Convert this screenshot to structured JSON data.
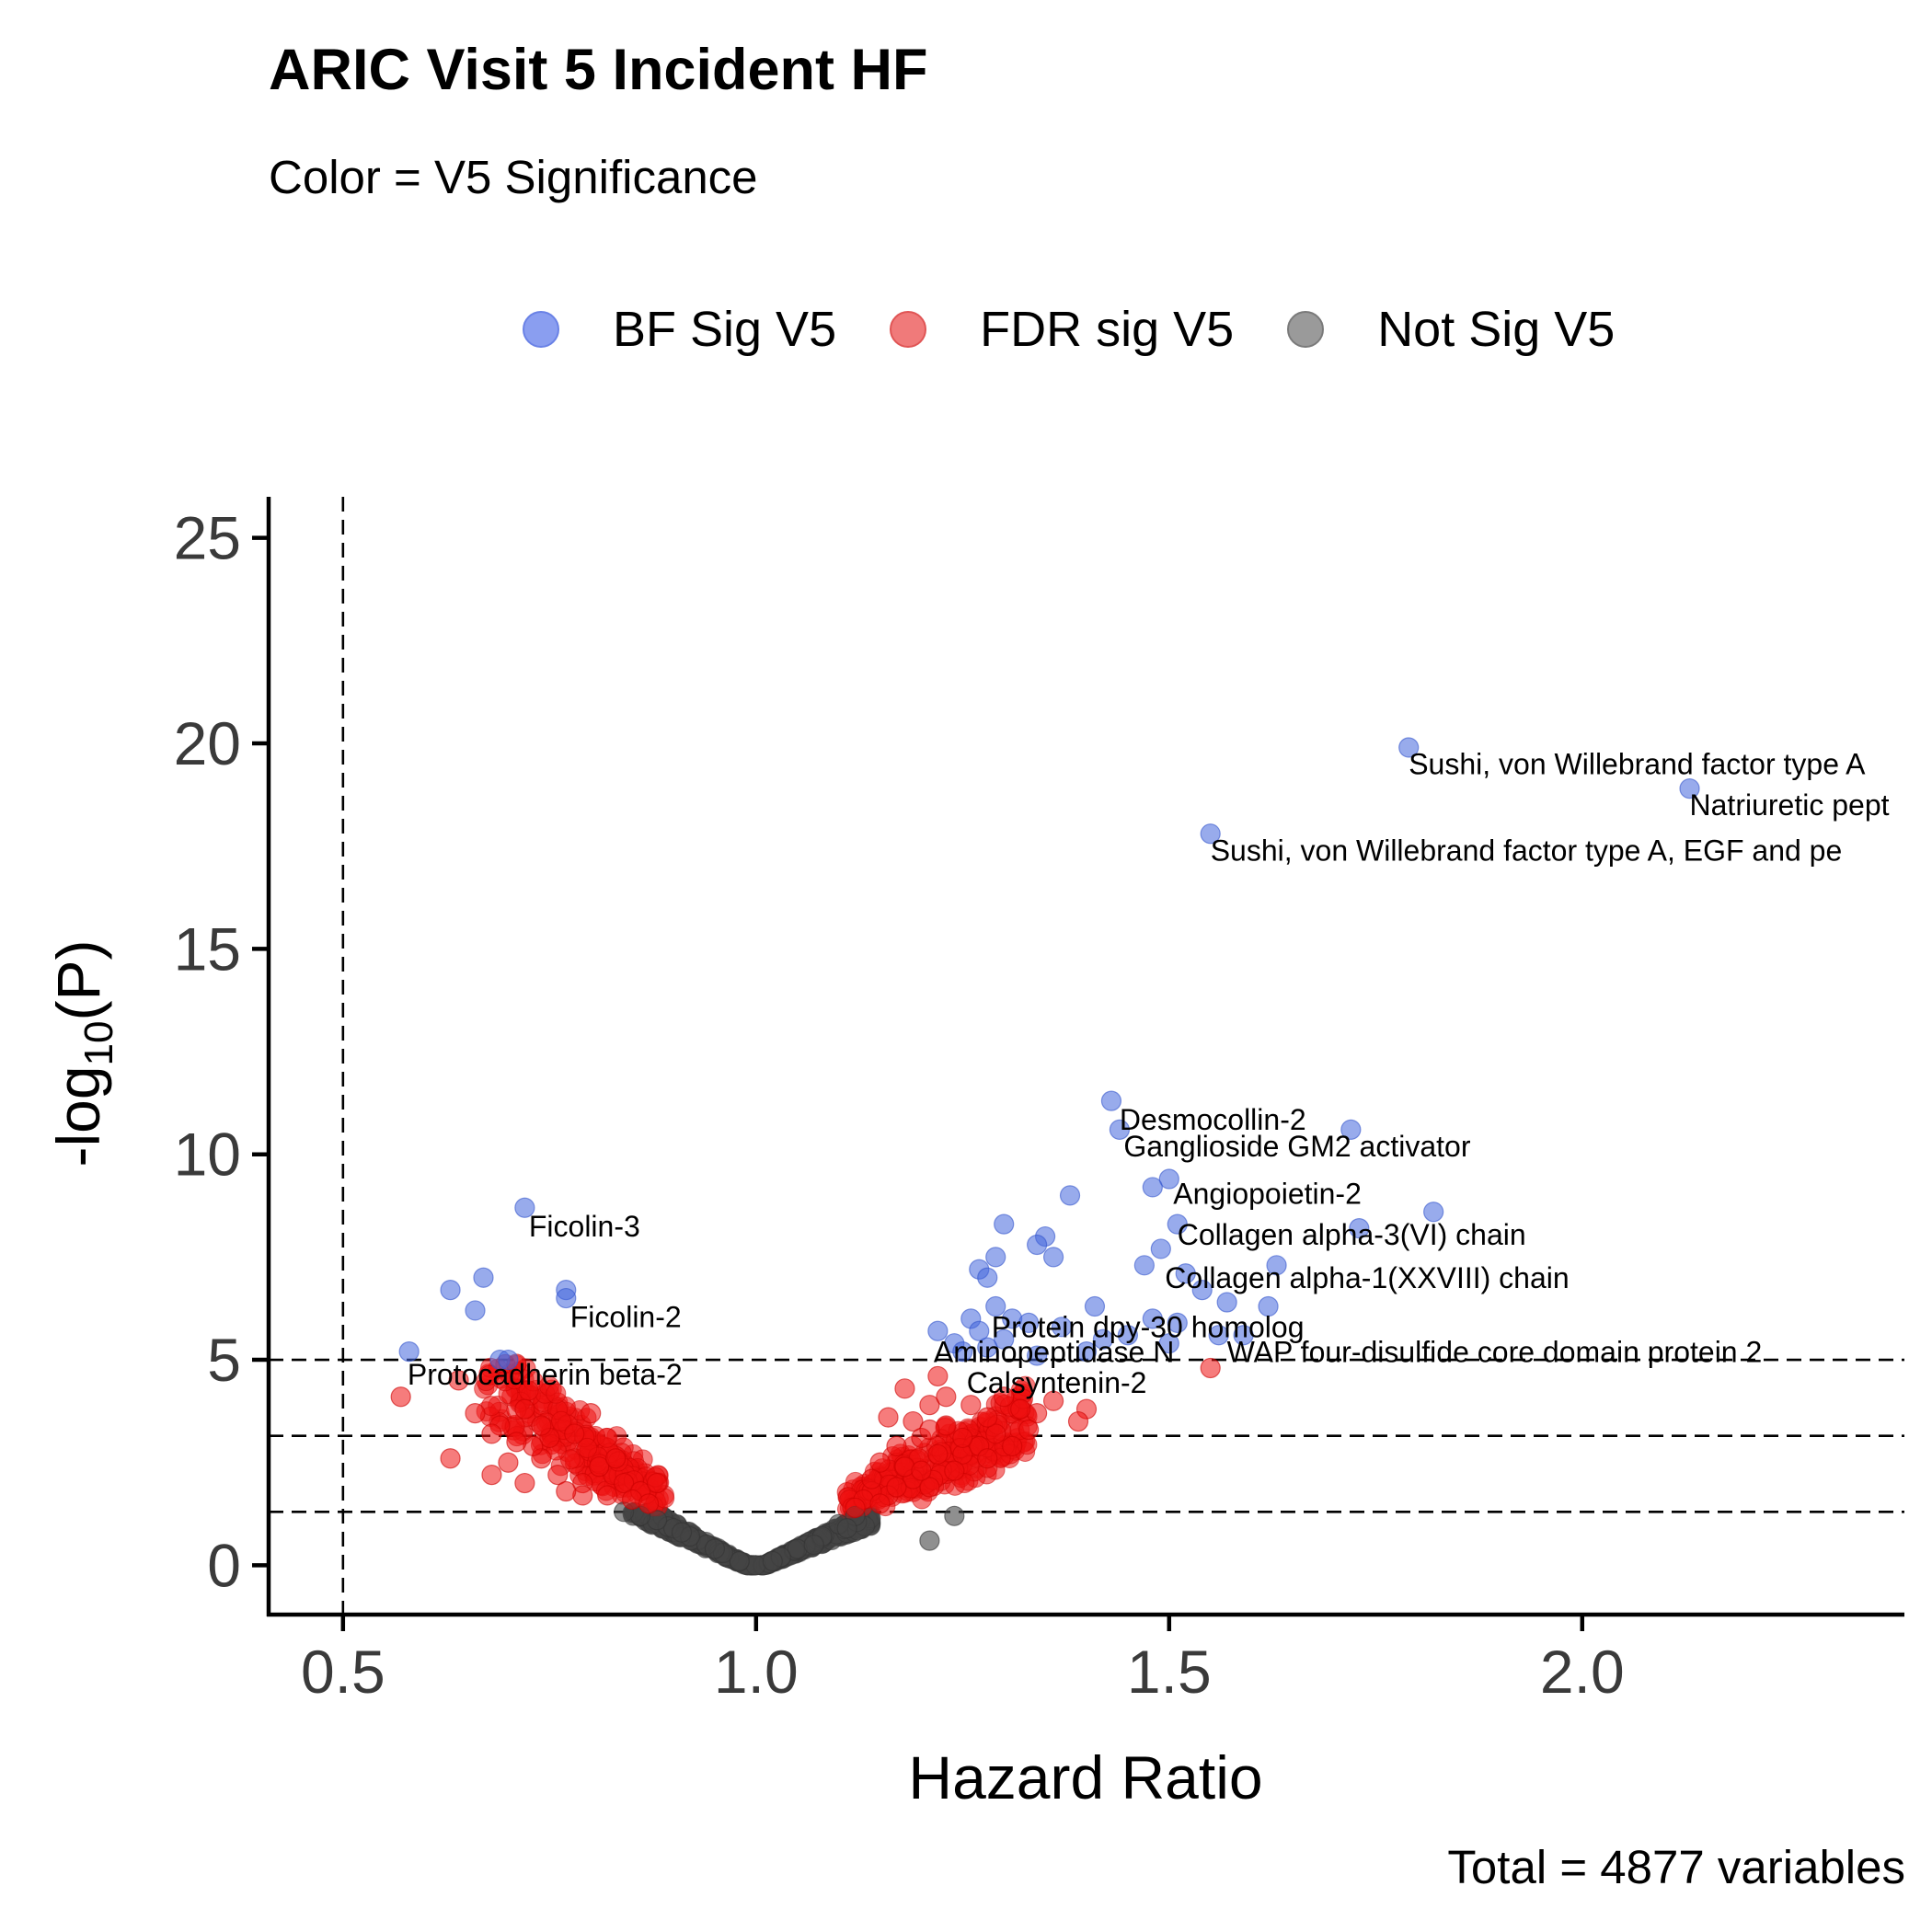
{
  "chart_data": {
    "type": "scatter",
    "title": "ARIC Visit 5 Incident HF",
    "subtitle": "Color = V5 Significance",
    "caption": "Total = 4877 variables",
    "xlabel": "Hazard Ratio",
    "ylabel": {
      "base": "-log",
      "sub": "10",
      "tail": "(P)"
    },
    "xlim": [
      0.41,
      2.39
    ],
    "ylim": [
      -1.2,
      26
    ],
    "xticks": [
      0.5,
      1.0,
      1.5,
      2.0
    ],
    "xtick_labels": [
      "0.5",
      "1.0",
      "1.5",
      "2.0"
    ],
    "yticks": [
      0,
      5,
      10,
      15,
      20,
      25
    ],
    "ytick_labels": [
      "0",
      "5",
      "10",
      "15",
      "20",
      "25"
    ],
    "vlines": [
      0.5
    ],
    "hlines": [
      5.0,
      3.15,
      1.3
    ],
    "grid": false,
    "legend_position": "top",
    "series": [
      {
        "name": "BF Sig V5",
        "color": "#4466dd",
        "points": [
          [
            1.79,
            19.9
          ],
          [
            2.13,
            18.9
          ],
          [
            1.55,
            17.8
          ],
          [
            1.43,
            11.3
          ],
          [
            1.72,
            10.6
          ],
          [
            1.44,
            10.6
          ],
          [
            1.5,
            9.4
          ],
          [
            1.48,
            9.2
          ],
          [
            1.38,
            9.0
          ],
          [
            1.82,
            8.6
          ],
          [
            1.51,
            8.3
          ],
          [
            1.3,
            8.3
          ],
          [
            1.73,
            8.2
          ],
          [
            1.35,
            8.0
          ],
          [
            1.34,
            7.8
          ],
          [
            1.49,
            7.7
          ],
          [
            1.29,
            7.5
          ],
          [
            1.36,
            7.5
          ],
          [
            1.47,
            7.3
          ],
          [
            1.27,
            7.2
          ],
          [
            1.52,
            7.1
          ],
          [
            1.28,
            7.0
          ],
          [
            1.63,
            7.3
          ],
          [
            1.54,
            6.7
          ],
          [
            1.62,
            6.3
          ],
          [
            1.29,
            6.3
          ],
          [
            1.41,
            6.3
          ],
          [
            1.57,
            6.4
          ],
          [
            1.26,
            6.0
          ],
          [
            1.31,
            6.0
          ],
          [
            1.33,
            5.9
          ],
          [
            1.48,
            6.0
          ],
          [
            1.51,
            5.9
          ],
          [
            1.22,
            5.7
          ],
          [
            1.45,
            5.6
          ],
          [
            1.27,
            5.7
          ],
          [
            1.37,
            5.8
          ],
          [
            1.56,
            5.6
          ],
          [
            1.59,
            5.6
          ],
          [
            1.24,
            5.4
          ],
          [
            1.3,
            5.5
          ],
          [
            1.42,
            5.5
          ],
          [
            1.5,
            5.4
          ],
          [
            1.25,
            5.2
          ],
          [
            1.34,
            5.1
          ],
          [
            1.28,
            5.3
          ],
          [
            1.4,
            5.2
          ],
          [
            0.72,
            8.7
          ],
          [
            0.77,
            6.7
          ],
          [
            0.77,
            6.5
          ],
          [
            0.63,
            6.7
          ],
          [
            0.67,
            7.0
          ],
          [
            0.66,
            6.2
          ],
          [
            0.58,
            5.2
          ],
          [
            0.69,
            5.0
          ],
          [
            0.7,
            5.0
          ]
        ]
      },
      {
        "name": "FDR sig V5",
        "color": "#ee1111",
        "points": [
          [
            1.55,
            4.8
          ],
          [
            1.4,
            3.8
          ],
          [
            1.39,
            3.5
          ],
          [
            1.34,
            3.7
          ],
          [
            1.29,
            3.2
          ],
          [
            1.31,
            2.9
          ],
          [
            1.21,
            3.9
          ],
          [
            1.25,
            2.7
          ],
          [
            1.18,
            4.3
          ],
          [
            1.16,
            3.6
          ],
          [
            1.22,
            4.6
          ],
          [
            1.28,
            3.6
          ],
          [
            1.2,
            3.1
          ],
          [
            1.24,
            2.3
          ],
          [
            1.15,
            2.5
          ],
          [
            1.17,
            2.9
          ],
          [
            1.19,
            2.1
          ],
          [
            1.21,
            1.9
          ],
          [
            1.16,
            1.7
          ],
          [
            1.14,
            1.8
          ],
          [
            1.13,
            1.6
          ],
          [
            1.12,
            1.4
          ],
          [
            1.18,
            2.4
          ],
          [
            1.23,
            3.4
          ],
          [
            1.26,
            3.9
          ],
          [
            1.3,
            4.1
          ],
          [
            1.32,
            3.8
          ],
          [
            1.36,
            4.0
          ],
          [
            1.27,
            2.9
          ],
          [
            1.22,
            2.7
          ],
          [
            1.2,
            2.3
          ],
          [
            1.25,
            3.1
          ],
          [
            1.14,
            2.1
          ],
          [
            1.19,
            3.5
          ],
          [
            1.23,
            4.1
          ],
          [
            1.17,
            1.9
          ],
          [
            1.15,
            1.5
          ],
          [
            1.28,
            2.6
          ],
          [
            1.33,
            3.3
          ],
          [
            1.21,
            3.3
          ],
          [
            0.57,
            4.1
          ],
          [
            0.64,
            4.5
          ],
          [
            0.66,
            3.7
          ],
          [
            0.71,
            4.9
          ],
          [
            0.63,
            2.6
          ],
          [
            0.69,
            3.4
          ],
          [
            0.72,
            3.8
          ],
          [
            0.74,
            2.6
          ],
          [
            0.78,
            3.2
          ],
          [
            0.8,
            3.7
          ],
          [
            0.68,
            2.2
          ],
          [
            0.7,
            2.5
          ],
          [
            0.72,
            2.0
          ],
          [
            0.75,
            3.1
          ],
          [
            0.76,
            2.2
          ],
          [
            0.79,
            2.0
          ],
          [
            0.81,
            2.4
          ],
          [
            0.83,
            2.6
          ],
          [
            0.84,
            2.0
          ],
          [
            0.86,
            1.8
          ],
          [
            0.88,
            2.0
          ],
          [
            0.82,
            1.7
          ],
          [
            0.79,
            1.7
          ],
          [
            0.77,
            1.8
          ],
          [
            0.73,
            2.9
          ],
          [
            0.71,
            3.0
          ],
          [
            0.68,
            3.2
          ],
          [
            0.74,
            3.4
          ],
          [
            0.85,
            1.6
          ],
          [
            0.87,
            1.5
          ]
        ]
      },
      {
        "name": "Not Sig V5",
        "color": "#555555",
        "points": [
          [
            1.21,
            0.6
          ],
          [
            1.24,
            1.2
          ],
          [
            1.1,
            1.0
          ],
          [
            1.08,
            0.7
          ],
          [
            1.05,
            0.4
          ],
          [
            1.03,
            0.2
          ],
          [
            1.02,
            0.1
          ],
          [
            0.98,
            0.1
          ],
          [
            0.96,
            0.3
          ],
          [
            0.94,
            0.5
          ],
          [
            0.92,
            0.7
          ],
          [
            0.9,
            0.9
          ],
          [
            0.88,
            1.1
          ],
          [
            0.86,
            1.2
          ],
          [
            0.84,
            1.3
          ],
          [
            1.12,
            1.2
          ],
          [
            1.11,
            0.9
          ],
          [
            1.07,
            0.5
          ],
          [
            0.95,
            0.4
          ],
          [
            0.91,
            0.8
          ]
        ]
      }
    ],
    "annotations": [
      {
        "text": "Sushi, von Willebrand factor type A",
        "x": 1.79,
        "y": 19.25
      },
      {
        "text": "Natriuretic pept",
        "x": 2.13,
        "y": 18.25
      },
      {
        "text": "Sushi, von Willebrand factor type A, EGF and pe",
        "x": 1.55,
        "y": 17.15
      },
      {
        "text": "Desmocollin-2",
        "x": 1.44,
        "y": 10.6
      },
      {
        "text": "Ganglioside GM2 activator",
        "x": 1.445,
        "y": 9.95
      },
      {
        "text": "Angiopoietin-2",
        "x": 1.505,
        "y": 8.8
      },
      {
        "text": "Collagen alpha-3(VI) chain",
        "x": 1.51,
        "y": 7.8
      },
      {
        "text": "Collagen alpha-1(XXVIII) chain",
        "x": 1.495,
        "y": 6.75
      },
      {
        "text": "Protein dpy-30 homolog",
        "x": 1.285,
        "y": 5.55
      },
      {
        "text": "Aminopeptidase N",
        "x": 1.215,
        "y": 4.95
      },
      {
        "text": "WAP four-disulfide core domain protein 2",
        "x": 1.57,
        "y": 4.95
      },
      {
        "text": "Calsyntenin-2",
        "x": 1.255,
        "y": 4.2
      },
      {
        "text": "Ficolin-3",
        "x": 0.725,
        "y": 8.0
      },
      {
        "text": "Ficolin-2",
        "x": 0.775,
        "y": 5.8
      },
      {
        "text": "Protocadherin beta-2",
        "x": 0.578,
        "y": 4.4
      }
    ]
  },
  "legend": {
    "items": [
      {
        "label": "BF Sig V5",
        "color": "#8a9ef0"
      },
      {
        "label": "FDR sig V5",
        "color": "#f07a7a"
      },
      {
        "label": "Not Sig V5",
        "color": "#9a9a9a"
      }
    ]
  }
}
